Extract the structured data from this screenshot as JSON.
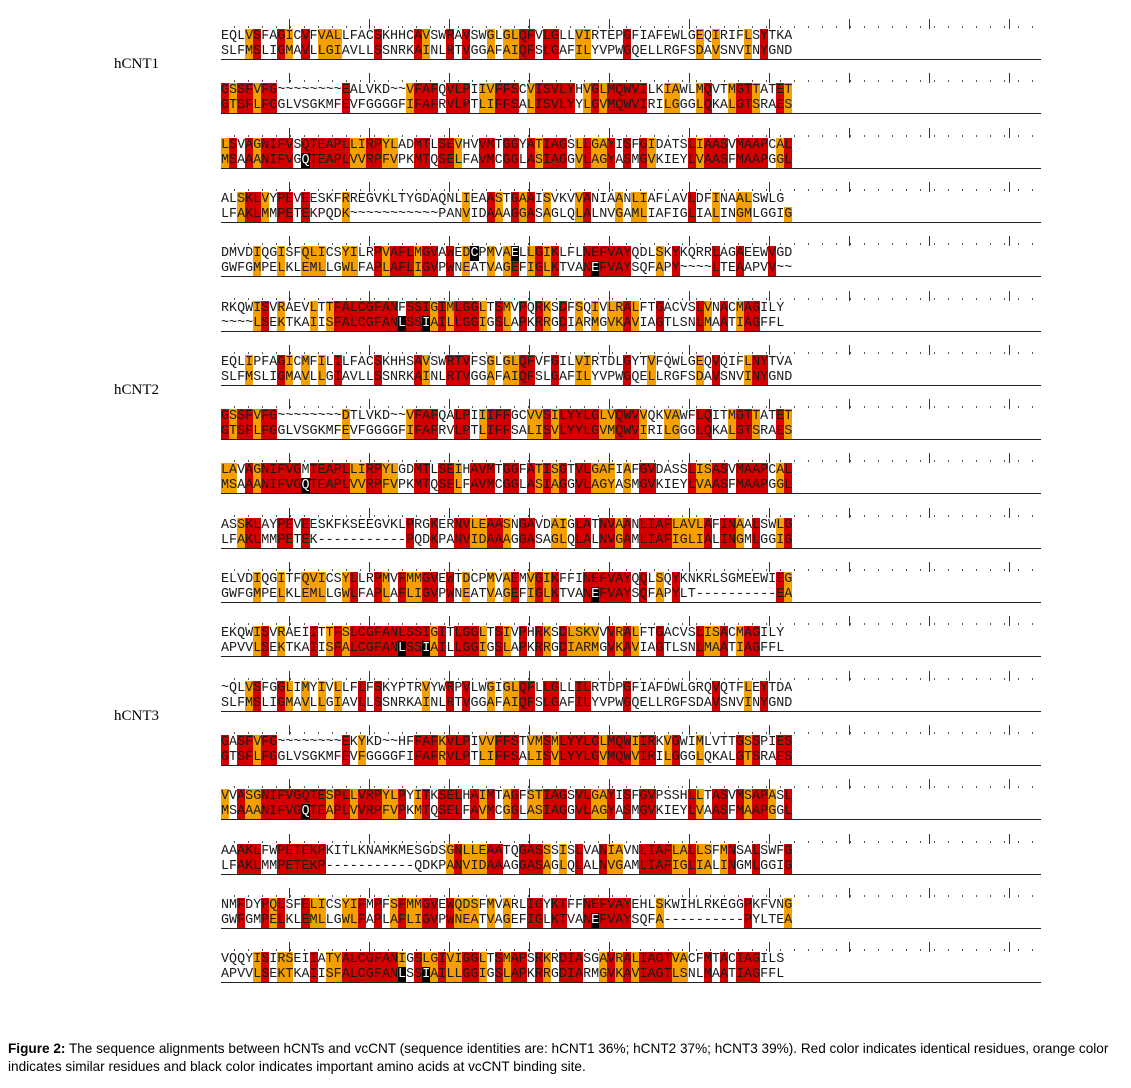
{
  "groups": [
    {
      "label": "hCNT1",
      "blocks": [
        [
          "EQLVSFAGICVFVALLFACSKHHCAVSWRAVSWGLGLQFVLGLLVIRTEPGFIAFEWLGEQIRIFLSYTKA",
          "SLFMSLIGMAVLLGIAVLLSSNRKAINLRTVGGAFAIQFSLGAFILYVPWGQELLRGFSDAVSNVINYGND"
        ],
        [
          "GSSFVFG~~~~~~~~EALVKD~~VFAFQVLPIIVFFSCVISVLYHVGLMQWVILKIAWLMQVTMGTTATET",
          "GTSFLFGGLVSGKMFEVFGGGGFIFAFRVLPTLIFFSALISVLYYLGVMQWVIRILGGGLQKALGTSRAES"
        ],
        [
          "LSVAGNIFVSQTEAPLLIRPYLADMTLSEVHVVMTGGYATIAGSLLGAYISFGIDATSLIAASVMAAPCAL",
          "MSAAANIFVGQTEAPLVVRPFVPKMTQSELFAVMCGGLASIAGGVLAGYASMGVKIEYLVAASFMAAPGGL"
        ],
        [
          "ALSKLVYPEVEESKFRREGVKLTYGDAQNLIEAASTGAAISVKVVANIAANLIAFLAVLDFINAALSWLG",
          "LFAKLMMPETEKPQDK~~~~~~~~~~~PANVIDAAAGGASAGLQLALNVGAMLIAFIGLIALINGMLGGIG"
        ],
        [
          "DMVDIQGISFQLICSYILRPVAFLMGVAWEDCPMVAELLGIKLFLNEFVAYQDLSKYKQRRLAGAEEWVGD",
          "GWFGMPELKLEMLLGWLFAPLAFLIGVPWNEATVAGEFIGLKTVANEFVAYSQFAPY~~~~LTEAAPVV~~"
        ],
        [
          "RKQWISVRAEVLTTFALCGFANFSSIGIMLGGLTSMVPQRKSDFSQIVLRALFTGACVSLVNACMAGILY",
          "~~~~LSEKTKAIISFALCGFANLSSIAILLGGIGSLAPKRRGDIARMGVKAVIAGTLSNLMAATIAGFFL"
        ]
      ]
    },
    {
      "label": "hCNT2",
      "blocks": [
        [
          "EQLIPFAGICMFILILFACSKHHSAVSWRTVFSGLGLQFVFGILVIRTDLGYTVFQWLGEQVQIFLNYTVA",
          "SLFMSLIGMAVLLGIAVLLSSNRKAINLRTVGGAFAIQFSLGAFILYVPWGQELLRGFSDAVSNVINYGND"
        ],
        [
          "GSSFVFG~~~~~~~~DTLVKD~~VFAFQALPIIIFFGCVVSILYYLGLVQWVVQKVAWFLQITMGTTATET",
          "GTSFLFGGLVSGKMFEVFGGGGFIFAFRVLPTLIFFSALISVLYYLGVMQWVIRILGGGLQKALGTSRAES"
        ],
        [
          "LAVAGNIFVGMTEAPLLIRPYLGDMTLSEIHAVMTGGFATISGTVLGAFIAFGVDASSLISASVMAAPCAL",
          "MSAAANIFVGQTEAPLVVRPFVPKMTQSELFAVMCGGLASIAGGVLAGYASMGVKIEYLVAASFMAAPGGL"
        ],
        [
          "ASSKLAYPEVEESKFKSEEGVKLPRGKERNVLEAASNGAVDAIGLATNVAANLIAFLAVLAFINAALSWLG",
          "LFAKLMMPETEK-----------PQDKPANVIDAAAGGASAGLQLALNVGAMLIAFIGLIALINGMLGGIG"
        ],
        [
          "ELVDIQGITFQVICSYLLRPMVFMMGVEWTDCPMVAEMVGIKFFINEFVAYQQLSQYKNKRLSGMEEWIEG",
          "GWFGMPELKLEMLLGWLFAPLAFLIGVPWNEATVAGEFIGLKTVANEFVAYSQFAPYLT----------EA"
        ],
        [
          "EKQWISVRAEIITTFSLCGFANLSSIGITLGGLTSIVPHRKSDLSKVVVRALFTGACVSLISACMAGILY",
          "APVVLSEKTKAIISFALCGFANLSSIAILLGGIGSLAPKRRGDIARMGVKAVIAGTLSNLMAATIAGFFL"
        ]
      ]
    },
    {
      "label": "hCNT3",
      "blocks": [
        [
          "~QLVSFGGLIMYIVLLFLFSKYPTRVYWRPVLWGIGLQFLLGLLILRTDPGFIAFDWLGRQVQTFLEYTDA",
          "SLFMSLIGMAVLLGIAVLLSSNRKAINLRTVGGAFAIQFSLGAFILYVPWGQELLRGFSDAVSNVINYGND"
        ],
        [
          "GASFVFG~~~~~~~~EKYKD~~HFFAFKVLPIVVFFSTVMSMLYYLGLMQWIIRKVGWIMLVTTGSSPIES",
          "GTSFLFGGLVSGKMFEVFGGGGFIFAFRVLPTLIFFSALISVLYYLGVMQWVIRILGGGLQKALGTSRAES"
        ],
        [
          "VVASGNIFVGQTESPLLVRPYLPYITKSELHAIMTAGFSTIAGSVLGAYISFGVPSSHLLTASVMSAPASL",
          "MSAAANIFVGQTEAPLVVRPFVPKMTQSELFAVMCGGLASIAGGVLAGYASMGVKIEYLVAASFMAAPGGL"
        ],
        [
          "AAAKLFWPETEKPKITLKNAMKMESGDSGNLLEAATQGASSSISLVANIAVNLIAFLALLSFMNSALSWFG",
          "LFAKLMMPETEKP-----------QDKPANVIDAAAGGASAGLQLALNVGAMLIAFIGLIALINGMLGGIG"
        ],
        [
          "NMFDYPQLSFELICSYIFMPFSFMMGVEWQDSFMVARLIGYKTFFNEFVAYEHLSKWIHLRKEGGPKFVNG",
          "GWFGMPELKLEMLLGWLFAPLAFLIGVPWNEATVAGEFIGLKTVANEFVAYSQFA----------PYLTEA"
        ],
        [
          "VQQYISIRSEIIATYALCGFANIGSLGIVIGGLTSMAPSRKRDIASGAVRALIAGTVACFMTACIAGILS",
          "APVVLSEKTKAIISFALCGFANLSSIAILLGGIGSLAPKRRGDIARMGVKAVIAGTLSNLMAATIAGFFL"
        ]
      ]
    }
  ],
  "caption": {
    "bold": "Figure 2:",
    "text": "The sequence alignments between hCNTs and vcCNT (sequence identities are: hCNT1 36%; hCNT2 37%; hCNT3 39%). Red color indicates identical residues, orange color indicates similar residues and black color indicates important amino acids at vcCNT binding site."
  },
  "legend_colors": {
    "identical": "#d40000",
    "similar": "#f6a000",
    "binding_site": "#000000"
  }
}
